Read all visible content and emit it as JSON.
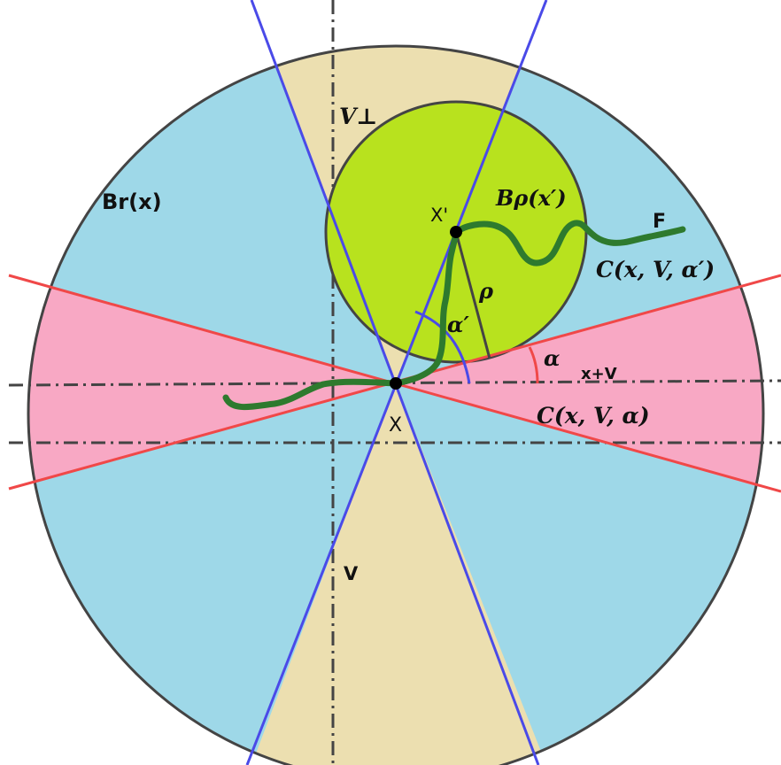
{
  "labels": {
    "ball_r": "Br(x)",
    "ball_rho": "Bρ(x′)",
    "v_perp": "V⊥",
    "v": "V",
    "point_x": "X",
    "point_x_prime": "X'",
    "f": "F",
    "cone_alpha_prime": "C(x, V, α′)",
    "cone_alpha": "C(x, V, α)",
    "x_plus_v": "x+V",
    "rho": "ρ",
    "alpha": "α",
    "alpha_prime": "α′"
  },
  "colors": {
    "big_ball": "#9ed8e8",
    "vertical_cone": "#ecdfb0",
    "horizontal_cone": "#f8a8c4",
    "small_ball": "#b8e21e",
    "curve": "#2e7a2e",
    "blue_lines": "#4a4ae8",
    "red_lines": "#f04848",
    "outline": "#444444",
    "axes": "#444444"
  }
}
